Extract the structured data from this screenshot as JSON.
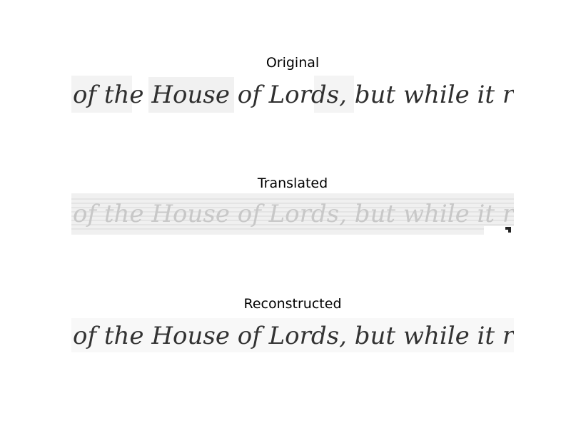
{
  "panels": [
    {
      "title": "Original",
      "handwriting": "of the House of Lords, but while it remains",
      "ink_color": "#2f2f2f",
      "background": "#f2f2f2"
    },
    {
      "title": "Translated",
      "handwriting": "of the House of Lords, but while it remains",
      "ink_color": "#c8c8c8",
      "background": "#ececec"
    },
    {
      "title": "Reconstructed",
      "handwriting": "of the House of Lords, but while it remains",
      "ink_color": "#333333",
      "background": "#ffffff"
    }
  ]
}
